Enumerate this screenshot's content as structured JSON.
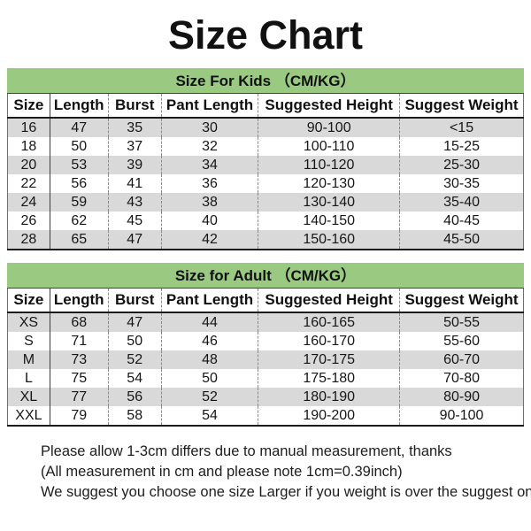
{
  "title": "Size Chart",
  "colors": {
    "banner_green": "#9aca81",
    "row_stripe_grey": "#d9d9d9",
    "text_black": "#111111"
  },
  "kids": {
    "banner": "Size For Kids （CM/KG）",
    "headers": [
      "Size",
      "Length",
      "Burst",
      "Pant Length",
      "Suggested Height",
      "Suggest Weight"
    ],
    "rows": [
      [
        "16",
        "47",
        "35",
        "30",
        "90-100",
        "<15"
      ],
      [
        "18",
        "50",
        "37",
        "32",
        "100-110",
        "15-25"
      ],
      [
        "20",
        "53",
        "39",
        "34",
        "110-120",
        "25-30"
      ],
      [
        "22",
        "56",
        "41",
        "36",
        "120-130",
        "30-35"
      ],
      [
        "24",
        "59",
        "43",
        "38",
        "130-140",
        "35-40"
      ],
      [
        "26",
        "62",
        "45",
        "40",
        "140-150",
        "40-45"
      ],
      [
        "28",
        "65",
        "47",
        "42",
        "150-160",
        "45-50"
      ]
    ]
  },
  "adult": {
    "banner": "Size for Adult （CM/KG）",
    "headers": [
      "Size",
      "Length",
      "Burst",
      "Pant Length",
      "Suggested Height",
      "Suggest Weight"
    ],
    "rows": [
      [
        "XS",
        "68",
        "47",
        "44",
        "160-165",
        "50-55"
      ],
      [
        "S",
        "71",
        "50",
        "46",
        "160-170",
        "55-60"
      ],
      [
        "M",
        "73",
        "52",
        "48",
        "170-175",
        "60-70"
      ],
      [
        "L",
        "75",
        "54",
        "50",
        "175-180",
        "70-80"
      ],
      [
        "XL",
        "77",
        "56",
        "52",
        "180-190",
        "80-90"
      ],
      [
        "XXL",
        "79",
        "58",
        "54",
        "190-200",
        "90-100"
      ]
    ]
  },
  "notes": [
    "Please allow 1-3cm differs due to manual measurement, thanks",
    "(All measurement in cm and please note 1cm=0.39inch)",
    "We suggest you choose one size Larger if you weight is over the suggest one"
  ]
}
